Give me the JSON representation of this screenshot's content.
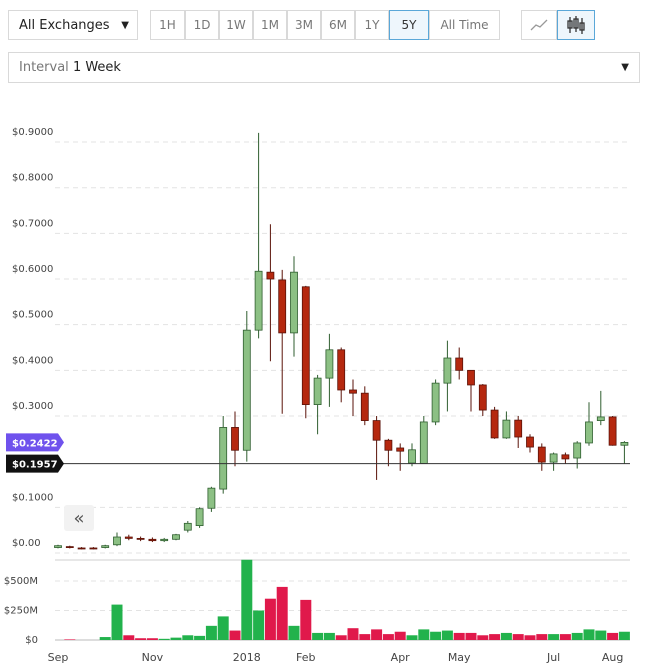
{
  "controls": {
    "exchange": "All Exchanges",
    "ranges": [
      "1H",
      "1D",
      "1W",
      "1M",
      "3M",
      "6M",
      "1Y",
      "5Y",
      "All Time"
    ],
    "selected_range": "5Y",
    "interval_label": "Interval",
    "interval": "1 Week"
  },
  "chart_data": {
    "type": "candlestick",
    "categories": [
      "Sep",
      null,
      null,
      null,
      null,
      null,
      null,
      null,
      "Nov",
      null,
      null,
      null,
      null,
      null,
      null,
      null,
      "2018",
      null,
      null,
      null,
      null,
      "Feb",
      null,
      null,
      null,
      null,
      null,
      null,
      null,
      "Apr",
      null,
      null,
      null,
      null,
      "May",
      null,
      null,
      null,
      null,
      null,
      null,
      null,
      "Jul",
      null,
      null,
      null,
      null,
      "Aug",
      null
    ],
    "open": [
      0.012,
      0.014,
      0.011,
      0.011,
      0.012,
      0.018,
      0.035,
      0.032,
      0.03,
      0.027,
      0.03,
      0.05,
      0.06,
      0.098,
      0.14,
      0.275,
      0.225,
      0.488,
      0.615,
      0.598,
      0.482,
      0.583,
      0.325,
      0.383,
      0.445,
      0.357,
      0.35,
      0.29,
      0.247,
      0.23,
      0.197,
      0.196,
      0.287,
      0.372,
      0.427,
      0.4,
      0.368,
      0.313,
      0.252,
      0.291,
      0.254,
      0.232,
      0.199,
      0.215,
      0.208,
      0.241,
      0.29,
      0.298,
      0.236
    ],
    "high": [
      0.018,
      0.016,
      0.013,
      0.013,
      0.018,
      0.045,
      0.04,
      0.036,
      0.034,
      0.033,
      0.042,
      0.07,
      0.1,
      0.145,
      0.3,
      0.31,
      0.53,
      0.92,
      0.72,
      0.62,
      0.65,
      0.585,
      0.39,
      0.48,
      0.45,
      0.38,
      0.365,
      0.3,
      0.25,
      0.24,
      0.24,
      0.3,
      0.38,
      0.465,
      0.45,
      0.4,
      0.37,
      0.32,
      0.31,
      0.3,
      0.26,
      0.24,
      0.22,
      0.22,
      0.245,
      0.33,
      0.355,
      0.3,
      0.245
    ],
    "low": [
      0.01,
      0.01,
      0.008,
      0.008,
      0.01,
      0.015,
      0.028,
      0.026,
      0.024,
      0.024,
      0.028,
      0.045,
      0.055,
      0.09,
      0.13,
      0.19,
      0.2,
      0.47,
      0.42,
      0.305,
      0.43,
      0.295,
      0.26,
      0.32,
      0.33,
      0.3,
      0.28,
      0.16,
      0.19,
      0.18,
      0.19,
      0.195,
      0.28,
      0.31,
      0.38,
      0.31,
      0.3,
      0.25,
      0.25,
      0.23,
      0.22,
      0.18,
      0.18,
      0.195,
      0.185,
      0.235,
      0.28,
      0.235,
      0.195
    ],
    "close": [
      0.016,
      0.012,
      0.01,
      0.01,
      0.016,
      0.035,
      0.032,
      0.03,
      0.027,
      0.03,
      0.04,
      0.065,
      0.097,
      0.142,
      0.275,
      0.225,
      0.488,
      0.617,
      0.6,
      0.482,
      0.615,
      0.325,
      0.383,
      0.445,
      0.357,
      0.35,
      0.29,
      0.247,
      0.225,
      0.223,
      0.226,
      0.287,
      0.372,
      0.427,
      0.4,
      0.368,
      0.313,
      0.252,
      0.291,
      0.254,
      0.232,
      0.199,
      0.217,
      0.206,
      0.241,
      0.287,
      0.298,
      0.236,
      0.2422
    ],
    "up_color": "#8cc084",
    "down_color": "#b5280f",
    "ylim": [
      0,
      0.95
    ],
    "yticks": [
      {
        "value": 0,
        "label": "$0.00"
      },
      {
        "value": 0.1,
        "label": "$0.1000"
      },
      {
        "value": 0.3,
        "label": "$0.3000"
      },
      {
        "value": 0.4,
        "label": "$0.4000"
      },
      {
        "value": 0.5,
        "label": "$0.5000"
      },
      {
        "value": 0.6,
        "label": "$0.6000"
      },
      {
        "value": 0.7,
        "label": "$0.7000"
      },
      {
        "value": 0.8,
        "label": "$0.8000"
      },
      {
        "value": 0.9,
        "label": "$0.9000"
      }
    ],
    "grid": true,
    "markers": [
      {
        "label": "$0.2422",
        "value": 0.2422,
        "color": "#6f52ed"
      },
      {
        "label": "$0.1957",
        "value": 0.1957,
        "color": "#111111"
      }
    ],
    "volume": {
      "values": [
        0,
        5000000,
        0,
        0,
        25000000,
        300000000,
        40000000,
        15000000,
        15000000,
        10000000,
        20000000,
        40000000,
        35000000,
        120000000,
        200000000,
        80000000,
        680000000,
        250000000,
        350000000,
        450000000,
        120000000,
        340000000,
        60000000,
        60000000,
        40000000,
        100000000,
        50000000,
        90000000,
        50000000,
        70000000,
        40000000,
        90000000,
        70000000,
        80000000,
        60000000,
        60000000,
        40000000,
        50000000,
        60000000,
        50000000,
        40000000,
        50000000,
        50000000,
        50000000,
        60000000,
        90000000,
        80000000,
        60000000,
        70000000
      ],
      "up_color": "#22b24c",
      "down_color": "#e0194b",
      "ylim": [
        0,
        700000000
      ],
      "yticks": [
        {
          "value": 0,
          "label": "$0"
        },
        {
          "value": 250000000,
          "label": "$250M"
        },
        {
          "value": 500000000,
          "label": "$500M"
        }
      ]
    }
  }
}
